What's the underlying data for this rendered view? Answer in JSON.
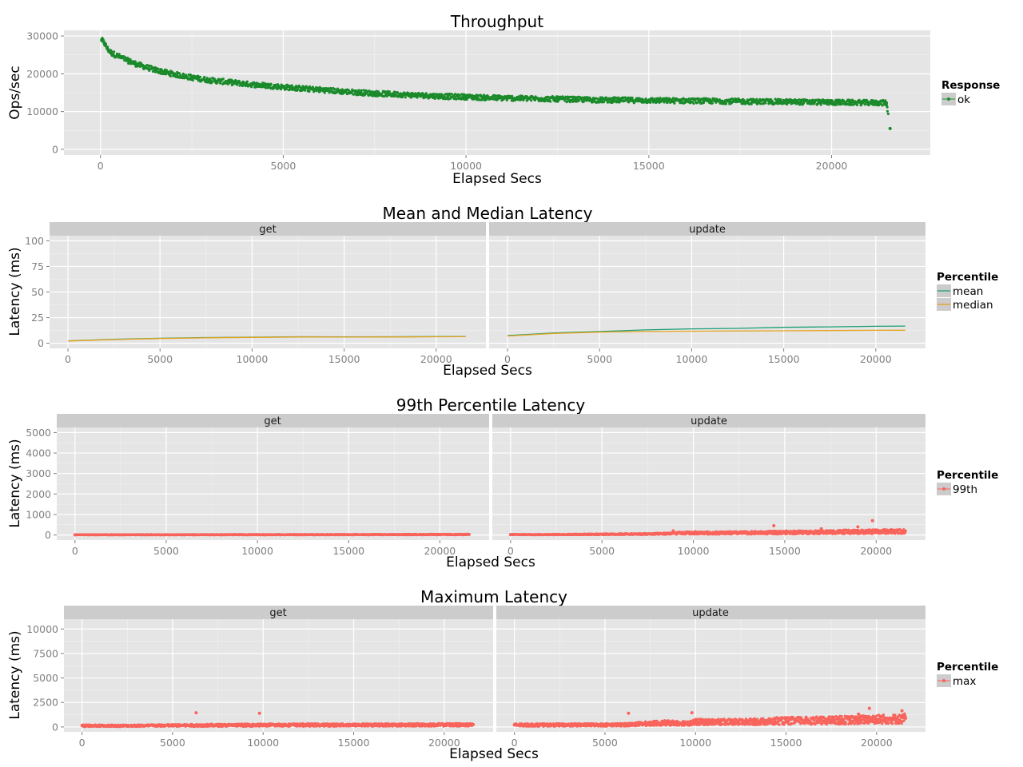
{
  "chart_data": [
    {
      "type": "scatter",
      "title": "Throughput",
      "xlabel": "Elapsed Secs",
      "ylabel": "Ops/sec",
      "xlim": [
        -1000,
        22700
      ],
      "ylim": [
        -1500,
        31500
      ],
      "x_ticks": [
        0,
        5000,
        10000,
        15000,
        20000
      ],
      "x_tick_labels": [
        "0",
        "5000",
        "10000",
        "15000",
        "20000"
      ],
      "y_ticks": [
        0,
        10000,
        20000,
        30000
      ],
      "y_tick_labels": [
        "0",
        "10000",
        "20000",
        "30000"
      ],
      "grid": true,
      "legend": {
        "title": "Response",
        "position": "right",
        "entries": [
          "ok"
        ]
      },
      "colors": {
        "ok": "#1a8a2a"
      },
      "series": [
        {
          "name": "ok",
          "x": [
            30,
            100,
            200,
            300,
            500,
            750,
            1000,
            1500,
            2000,
            2500,
            3000,
            3500,
            4000,
            4500,
            5000,
            5500,
            6000,
            6500,
            7000,
            7500,
            8000,
            8500,
            9000,
            9500,
            10000,
            10500,
            11000,
            11500,
            12000,
            12500,
            13000,
            13500,
            14000,
            14500,
            15000,
            15500,
            16000,
            16500,
            17000,
            17500,
            18000,
            18500,
            19000,
            19500,
            20000,
            20500,
            21000,
            21500,
            21600
          ],
          "y": [
            29000,
            28200,
            26500,
            25500,
            24600,
            23500,
            22500,
            21000,
            19900,
            19000,
            18300,
            17800,
            17300,
            16900,
            16500,
            16100,
            15800,
            15400,
            15100,
            14800,
            14600,
            14400,
            14200,
            14000,
            13900,
            13700,
            13600,
            13500,
            13400,
            13300,
            13200,
            13100,
            13050,
            13000,
            12950,
            12900,
            12850,
            12800,
            12750,
            12700,
            12650,
            12600,
            12550,
            12500,
            12450,
            12400,
            12350,
            12300,
            5500
          ]
        }
      ]
    },
    {
      "type": "line",
      "title": "Mean and Median Latency",
      "xlabel": "Elapsed Secs",
      "ylabel": "Latency (ms)",
      "xlim": [
        -1000,
        22700
      ],
      "ylim": [
        -5,
        105
      ],
      "x_ticks": [
        0,
        5000,
        10000,
        15000,
        20000
      ],
      "x_tick_labels": [
        "0",
        "5000",
        "10000",
        "15000",
        "20000"
      ],
      "y_ticks": [
        0,
        25,
        50,
        75,
        100
      ],
      "y_tick_labels": [
        "0",
        "25",
        "50",
        "75",
        "100"
      ],
      "grid": true,
      "facets": [
        "get",
        "update"
      ],
      "legend": {
        "title": "Percentile",
        "position": "right",
        "entries": [
          "mean",
          "median"
        ]
      },
      "colors": {
        "mean": "#1b9e77",
        "median": "#e6a21a"
      },
      "panels": [
        {
          "facet": "get",
          "series": [
            {
              "name": "mean",
              "x": [
                0,
                2500,
                5000,
                7500,
                10000,
                12500,
                15000,
                17500,
                20000,
                21600
              ],
              "y": [
                2.3,
                3.8,
                4.8,
                5.5,
                5.9,
                6.3,
                6.2,
                6.3,
                6.5,
                6.6
              ]
            },
            {
              "name": "median",
              "x": [
                0,
                2500,
                5000,
                7500,
                10000,
                12500,
                15000,
                17500,
                20000,
                21600
              ],
              "y": [
                2.2,
                3.6,
                4.6,
                5.3,
                5.7,
                6.1,
                6.0,
                6.1,
                6.3,
                6.4
              ]
            }
          ]
        },
        {
          "facet": "update",
          "series": [
            {
              "name": "mean",
              "x": [
                0,
                2500,
                5000,
                7500,
                10000,
                12500,
                15000,
                17500,
                20000,
                21600
              ],
              "y": [
                7.5,
                10.0,
                11.5,
                13.0,
                14.0,
                14.5,
                15.5,
                16.0,
                16.5,
                16.8
              ]
            },
            {
              "name": "median",
              "x": [
                0,
                2500,
                5000,
                7500,
                10000,
                12500,
                15000,
                17500,
                20000,
                21600
              ],
              "y": [
                7.0,
                9.5,
                10.8,
                11.5,
                11.8,
                12.0,
                12.2,
                12.4,
                12.6,
                12.7
              ]
            }
          ]
        }
      ]
    },
    {
      "type": "scatter",
      "title": "99th Percentile Latency",
      "xlabel": "Elapsed Secs",
      "ylabel": "Latency (ms)",
      "xlim": [
        -1000,
        22700
      ],
      "ylim": [
        -250,
        5250
      ],
      "x_ticks": [
        0,
        5000,
        10000,
        15000,
        20000
      ],
      "x_tick_labels": [
        "0",
        "5000",
        "10000",
        "15000",
        "20000"
      ],
      "y_ticks": [
        0,
        1000,
        2000,
        3000,
        4000,
        5000
      ],
      "y_tick_labels": [
        "0",
        "1000",
        "2000",
        "3000",
        "4000",
        "5000"
      ],
      "grid": true,
      "facets": [
        "get",
        "update"
      ],
      "legend": {
        "title": "Percentile",
        "position": "right",
        "entries": [
          "99th"
        ]
      },
      "colors": {
        "99th": "#f8645c"
      },
      "panels": [
        {
          "facet": "get",
          "series": [
            {
              "name": "99th",
              "x": [
                0,
                2000,
                4000,
                6000,
                8000,
                10000,
                12000,
                14000,
                16000,
                18000,
                20000,
                21600
              ],
              "y": [
                10,
                12,
                12,
                14,
                15,
                15,
                16,
                18,
                20,
                22,
                25,
                28
              ]
            }
          ]
        },
        {
          "facet": "update",
          "series": [
            {
              "name": "99th",
              "x": [
                0,
                2000,
                4000,
                6000,
                8000,
                8900,
                10000,
                12000,
                14000,
                14400,
                16000,
                17000,
                18000,
                19000,
                19300,
                19800,
                20000,
                21000,
                21600
              ],
              "y": [
                20,
                30,
                40,
                50,
                80,
                200,
                100,
                110,
                120,
                450,
                130,
                300,
                150,
                400,
                160,
                700,
                170,
                180,
                190
              ]
            }
          ]
        }
      ]
    },
    {
      "type": "scatter",
      "title": "Maximum Latency",
      "xlabel": "Elapsed Secs",
      "ylabel": "Latency (ms)",
      "xlim": [
        -1000,
        22700
      ],
      "ylim": [
        -500,
        11000
      ],
      "x_ticks": [
        0,
        5000,
        10000,
        15000,
        20000
      ],
      "x_tick_labels": [
        "0",
        "5000",
        "10000",
        "15000",
        "20000"
      ],
      "y_ticks": [
        0,
        2500,
        5000,
        7500,
        10000
      ],
      "y_tick_labels": [
        "0",
        "2500",
        "5000",
        "7500",
        "10000"
      ],
      "grid": true,
      "facets": [
        "get",
        "update"
      ],
      "legend": {
        "title": "Percentile",
        "position": "right",
        "entries": [
          "max"
        ]
      },
      "colors": {
        "max": "#f8645c"
      },
      "panels": [
        {
          "facet": "get",
          "series": [
            {
              "name": "max",
              "x": [
                0,
                1000,
                2000,
                3000,
                4000,
                5000,
                6300,
                7000,
                8000,
                9000,
                9800,
                11000,
                13000,
                15000,
                17000,
                19000,
                21000,
                21600
              ],
              "y": [
                150,
                120,
                130,
                140,
                150,
                160,
                1450,
                170,
                180,
                190,
                1400,
                200,
                200,
                210,
                210,
                220,
                230,
                240
              ]
            }
          ]
        },
        {
          "facet": "update",
          "series": [
            {
              "name": "max",
              "x": [
                0,
                2000,
                4000,
                6000,
                6300,
                8000,
                9800,
                10000,
                12000,
                14000,
                14500,
                16000,
                17000,
                18000,
                19000,
                19600,
                20500,
                21400,
                21600
              ],
              "y": [
                200,
                210,
                220,
                250,
                1400,
                400,
                1450,
                500,
                550,
                600,
                950,
                650,
                1000,
                700,
                1300,
                1900,
                800,
                1650,
                900
              ]
            }
          ]
        }
      ]
    }
  ]
}
